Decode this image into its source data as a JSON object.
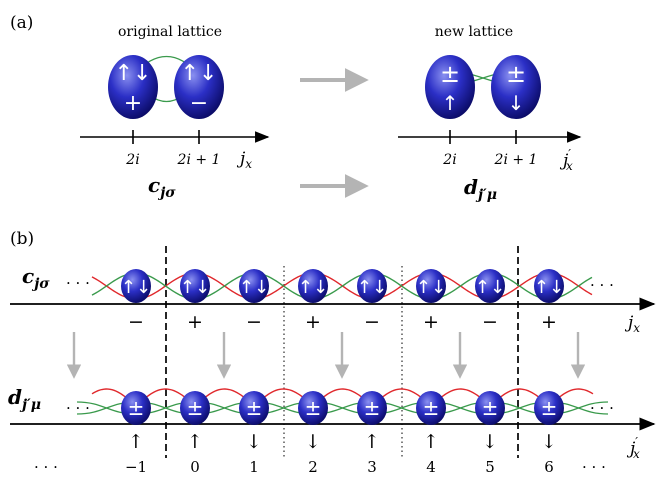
{
  "panel_a": {
    "tag": "(a)",
    "left_title": "original lattice",
    "right_title": "new lattice",
    "left_sites": [
      {
        "spin": "↑↓",
        "parity": "+"
      },
      {
        "spin": "↑↓",
        "parity": "−"
      }
    ],
    "right_sites": [
      {
        "parity": "±",
        "spin": "↑"
      },
      {
        "parity": "±",
        "spin": "↓"
      }
    ],
    "left_ticks": [
      "2i",
      "2i + 1"
    ],
    "right_ticks": [
      "2i",
      "2i + 1"
    ],
    "left_axis": "j",
    "left_axis_sub": "x",
    "right_axis": "j",
    "right_axis_sub": "x",
    "right_axis_prime": "′",
    "left_op": "c",
    "left_op_sub": "jσ",
    "right_op": "d",
    "right_op_sub": "j′μ"
  },
  "panel_b": {
    "tag": "(b)",
    "top_op": "c",
    "top_op_sub": "jσ",
    "bottom_op": "d",
    "bottom_op_sub": "j′μ",
    "ellipsis": "· · ·",
    "top_signs": [
      "−",
      "+",
      "−",
      "+",
      "−",
      "+",
      "−",
      "+"
    ],
    "top_orbital": "↑↓",
    "bottom_orbital": "±",
    "bottom_spins": [
      "↑",
      "↑",
      "↓",
      "↓",
      "↑",
      "↑",
      "↓",
      "↓"
    ],
    "site_indices": [
      "−1",
      "0",
      "1",
      "2",
      "3",
      "4",
      "5",
      "6"
    ],
    "top_axis": "j",
    "top_axis_sub": "x",
    "bottom_axis": "j",
    "bottom_axis_sub": "x",
    "bottom_axis_prime": "′"
  },
  "colors": {
    "orbital_light": "#7c84e6",
    "orbital_mid": "#2c2fc8",
    "orbital_dark": "#0a0a6a",
    "bond_red": "#e0282c",
    "bond_green": "#3a9a4c",
    "arrow_gray": "#b4b4b4"
  }
}
